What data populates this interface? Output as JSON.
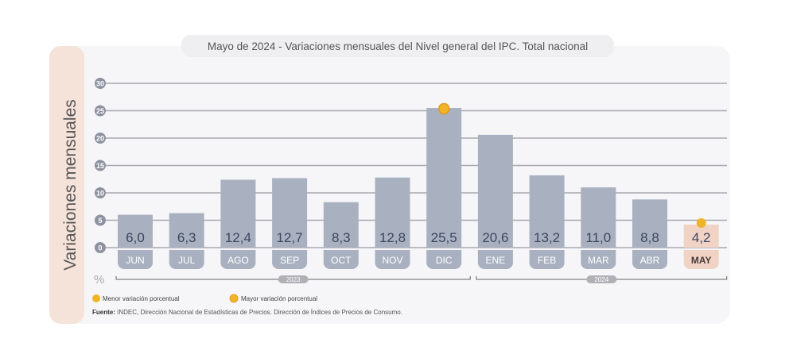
{
  "chart_data": {
    "type": "bar",
    "title": "Mayo de 2024 - Variaciones mensuales del Nivel general del IPC. Total nacional",
    "ylabel": "Variaciones mensuales",
    "yunit": "%",
    "ylim": [
      0,
      30
    ],
    "yticks": [
      "0",
      "5",
      "10",
      "15",
      "20",
      "25",
      "30"
    ],
    "grid": true,
    "categories": [
      "JUN",
      "JUL",
      "AGO",
      "SEP",
      "OCT",
      "NOV",
      "DIC",
      "ENE",
      "FEB",
      "MAR",
      "ABR",
      "MAY"
    ],
    "values": [
      6.0,
      6.3,
      12.4,
      12.7,
      8.3,
      12.8,
      25.5,
      20.6,
      13.2,
      11.0,
      8.8,
      4.2
    ],
    "value_labels": [
      "6,0",
      "6,3",
      "12,4",
      "12,7",
      "8,3",
      "12,8",
      "25,5",
      "20,6",
      "13,2",
      "11,0",
      "8,8",
      "4,2"
    ],
    "highlight_category": "MAY",
    "max_marker": "DIC",
    "min_marker": "MAY",
    "years": [
      {
        "label": "2023",
        "from": "JUN",
        "to": "DIC"
      },
      {
        "label": "2024",
        "from": "ENE",
        "to": "MAY"
      }
    ],
    "legend": [
      {
        "label": "Menor variación porcentual"
      },
      {
        "label": "Mayor variación porcentual"
      }
    ],
    "legend_placement": "bottom-left",
    "source_bold": "Fuente:",
    "source": " INDEC, Dirección Nacional de Estadísticas de Precios. Dirección de Índices de Precios de Consumo."
  },
  "colors": {
    "bar": "#a9b1c0",
    "highlight": "#f0d3c4",
    "marker": "#f0b429",
    "tick_badge": "#8e92a0",
    "side_panel": "#f5e2d8"
  }
}
